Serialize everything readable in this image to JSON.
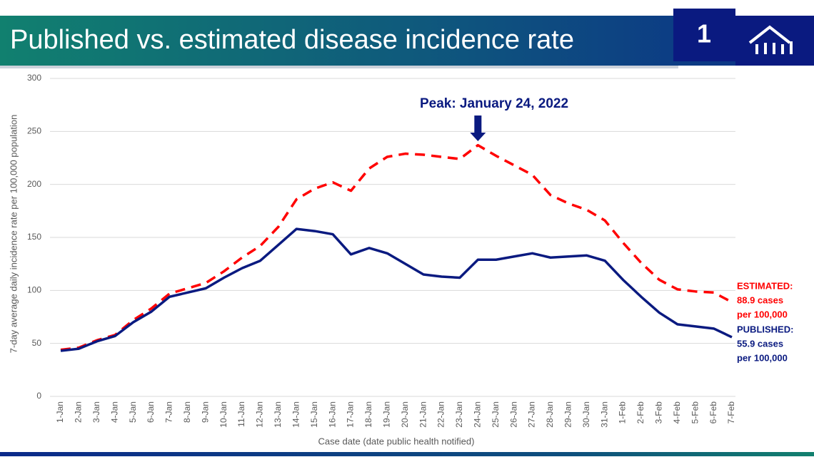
{
  "header": {
    "title": "Published vs. estimated disease incidence rate",
    "badge": "1"
  },
  "chart_data": {
    "type": "line",
    "annotation": "Peak:  January 24, 2022",
    "y_label": "7-day average daily incidence rate per 100,000 population",
    "x_label": "Case date (date public health notified)",
    "categories": [
      "1-Jan",
      "2-Jan",
      "3-Jan",
      "4-Jan",
      "5-Jan",
      "6-Jan",
      "7-Jan",
      "8-Jan",
      "9-Jan",
      "10-Jan",
      "11-Jan",
      "12-Jan",
      "13-Jan",
      "14-Jan",
      "15-Jan",
      "16-Jan",
      "17-Jan",
      "18-Jan",
      "19-Jan",
      "20-Jan",
      "21-Jan",
      "22-Jan",
      "23-Jan",
      "24-Jan",
      "25-Jan",
      "26-Jan",
      "27-Jan",
      "28-Jan",
      "29-Jan",
      "30-Jan",
      "31-Jan",
      "1-Feb",
      "2-Feb",
      "3-Feb",
      "4-Feb",
      "5-Feb",
      "6-Feb",
      "7-Feb"
    ],
    "series": [
      {
        "name": "ESTIMATED",
        "color": "#ff0000",
        "style": "dashed",
        "end_label": [
          "ESTIMATED:",
          "88.9 cases",
          "per 100,000"
        ],
        "values": [
          44,
          46,
          53,
          58,
          72,
          83,
          97,
          102,
          107,
          118,
          131,
          142,
          160,
          186,
          196,
          202,
          194,
          215,
          226,
          229,
          228,
          226,
          224,
          237,
          227,
          218,
          209,
          190,
          182,
          176,
          166,
          145,
          126,
          110,
          101,
          99,
          98,
          88.9
        ]
      },
      {
        "name": "PUBLISHED",
        "color": "#0a1a80",
        "style": "solid",
        "end_label": [
          "PUBLISHED:",
          "55.9 cases",
          "per 100,000"
        ],
        "values": [
          43,
          45,
          52,
          57,
          70,
          80,
          94,
          98,
          102,
          112,
          121,
          128,
          143,
          158,
          156,
          153,
          134,
          140,
          135,
          125,
          115,
          113,
          112,
          129,
          129,
          132,
          135,
          131,
          132,
          133,
          128,
          110,
          94,
          79,
          68,
          66,
          64,
          55.9
        ]
      }
    ],
    "ylim": [
      0,
      300
    ],
    "yticks": [
      0,
      50,
      100,
      150,
      200,
      250,
      300
    ],
    "grid": true
  }
}
